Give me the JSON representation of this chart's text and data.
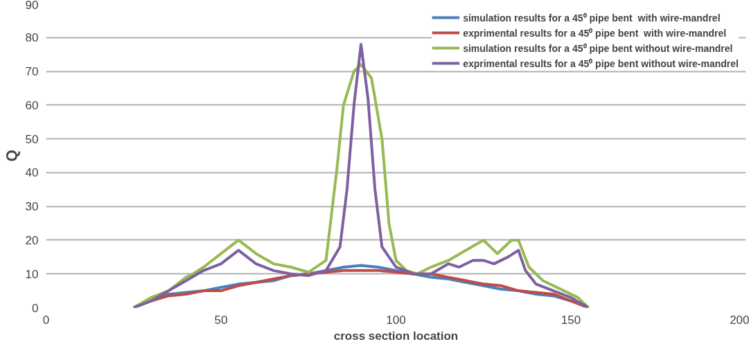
{
  "chart_data": {
    "type": "line",
    "xlabel": "cross section location",
    "ylabel": "Q",
    "xlim": [
      0,
      200
    ],
    "xticks": [
      0,
      50,
      100,
      150,
      200
    ],
    "ylim": [
      0,
      90
    ],
    "yticks": [
      0,
      10,
      20,
      30,
      40,
      50,
      60,
      70,
      80,
      90
    ],
    "grid": "y",
    "legend": "top right",
    "marker": "none",
    "line_style": "solid",
    "series": [
      {
        "name": "simulation results for a 45⁰ pipe bent  with wire-mandrel",
        "color": "#4a7ebb",
        "x": [
          25,
          30,
          35,
          40,
          45,
          50,
          55,
          60,
          65,
          70,
          75,
          80,
          85,
          90,
          95,
          100,
          105,
          110,
          115,
          120,
          125,
          130,
          135,
          140,
          145,
          150,
          155
        ],
        "values": [
          0,
          2,
          4,
          4.5,
          5,
          6,
          7,
          7.5,
          8,
          9.5,
          10,
          11,
          12,
          12.5,
          12,
          11,
          10,
          9,
          8.5,
          7.5,
          6.5,
          5.5,
          5,
          4,
          3.5,
          2,
          0
        ]
      },
      {
        "name": "exprimental results for a 45⁰ pipe bent  with wire-mandrel",
        "color": "#be4b48",
        "x": [
          25,
          30,
          35,
          40,
          45,
          50,
          55,
          60,
          65,
          70,
          75,
          80,
          85,
          90,
          95,
          100,
          105,
          110,
          115,
          120,
          125,
          130,
          135,
          140,
          145,
          150,
          155
        ],
        "values": [
          0,
          2,
          3.5,
          4,
          5,
          5,
          6.5,
          7.5,
          8.5,
          9.5,
          10,
          10.5,
          11,
          11,
          11,
          10.5,
          10,
          10,
          9,
          8,
          7,
          6.5,
          5,
          4.5,
          4,
          2,
          0
        ]
      },
      {
        "name": "simulation results for a 45⁰ pipe bent without wire-mandrel",
        "color": "#98b954",
        "x": [
          25,
          30,
          35,
          40,
          42,
          45,
          50,
          55,
          60,
          65,
          70,
          75,
          80,
          83,
          85,
          88,
          90,
          93,
          96,
          98,
          100,
          103,
          106,
          110,
          115,
          120,
          125,
          129,
          133,
          135,
          138,
          142,
          148,
          152,
          155
        ],
        "values": [
          0,
          3,
          5,
          9,
          10,
          12,
          16,
          20,
          16,
          13,
          12,
          10.5,
          14,
          40,
          60,
          70,
          72,
          68,
          50,
          25,
          14,
          11,
          10,
          12,
          14,
          17,
          20,
          16,
          20,
          20,
          12,
          8,
          5,
          3,
          0
        ]
      },
      {
        "name": "exprimental results for a 45⁰ pipe bent without wire-mandrel",
        "color": "#7d60a0",
        "x": [
          25,
          30,
          35,
          40,
          45,
          50,
          55,
          60,
          65,
          70,
          75,
          80,
          84,
          86,
          88,
          90,
          92,
          94,
          96,
          100,
          105,
          110,
          115,
          118,
          122,
          125,
          128,
          132,
          135,
          137,
          140,
          145,
          150,
          155
        ],
        "values": [
          0,
          2,
          5,
          8,
          11,
          13,
          17,
          13,
          11,
          10,
          9.5,
          11,
          18,
          35,
          60,
          78,
          62,
          35,
          18,
          12,
          10,
          10,
          13,
          12,
          14,
          14,
          13,
          15,
          17,
          11,
          7,
          5,
          3,
          0
        ]
      }
    ]
  }
}
